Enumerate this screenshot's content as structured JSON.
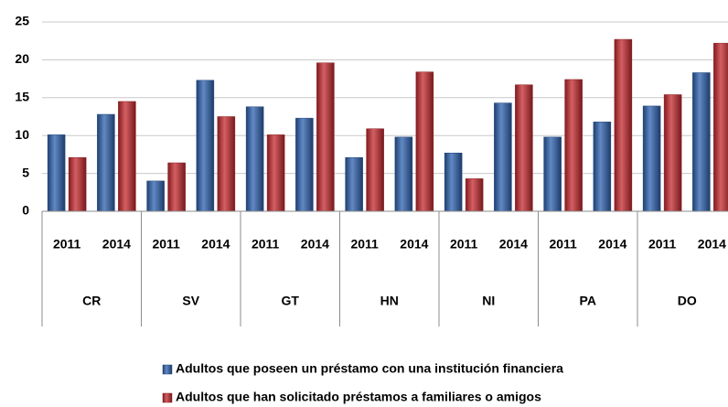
{
  "chart_data": {
    "type": "bar",
    "categories": [
      "2011",
      "2014",
      "2011",
      "2014",
      "2011",
      "2014",
      "2011",
      "2014",
      "2011",
      "2014",
      "2011",
      "2014",
      "2011",
      "2014"
    ],
    "groups": [
      "CR",
      "SV",
      "GT",
      "HN",
      "NI",
      "PA",
      "DO"
    ],
    "series": [
      {
        "name": "Adultos que poseen un préstamo con una institución financiera",
        "color": "#2e62b0",
        "values": [
          10.1,
          12.8,
          4.0,
          17.3,
          13.8,
          12.3,
          7.1,
          9.8,
          7.7,
          14.3,
          9.8,
          11.8,
          13.9,
          18.3
        ]
      },
      {
        "name": "Adultos que han solicitado préstamos a familiares o amigos",
        "color": "#c62a2f",
        "values": [
          7.1,
          14.5,
          6.4,
          12.5,
          10.1,
          19.6,
          10.9,
          18.4,
          4.3,
          16.7,
          17.4,
          22.7,
          15.4,
          22.2
        ]
      }
    ],
    "ylim": [
      0,
      25
    ],
    "yticks": [
      0,
      5,
      10,
      15,
      20,
      25
    ],
    "grid": true,
    "legend": "bottom"
  }
}
